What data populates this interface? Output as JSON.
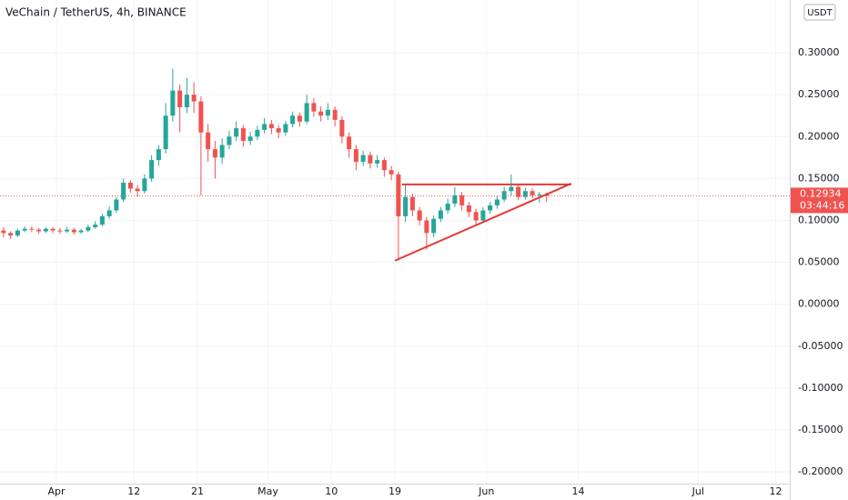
{
  "chart_data": {
    "type": "candlestick",
    "title": "VeChain / TetherUS, 4h, BINANCE",
    "currency": "USDT",
    "countdown": "03:44:16",
    "up_color": "#26a69a",
    "down_color": "#ef5350",
    "grid": true,
    "x": [
      "Mar 24",
      "Mar 25",
      "Mar 26",
      "Mar 27",
      "Mar 28",
      "Mar 29",
      "Mar 30",
      "Mar 31",
      "Apr 1",
      "Apr 2",
      "Apr 3",
      "Apr 4",
      "Apr 5",
      "Apr 6",
      "Apr 7",
      "Apr 8",
      "Apr 9",
      "Apr 10",
      "Apr 11",
      "Apr 12",
      "Apr 13",
      "Apr 14",
      "Apr 15",
      "Apr 16",
      "Apr 17",
      "Apr 18",
      "Apr 19",
      "Apr 20",
      "Apr 21",
      "Apr 22",
      "Apr 23",
      "Apr 24",
      "Apr 25",
      "Apr 26",
      "Apr 27",
      "Apr 28",
      "Apr 29",
      "Apr 30",
      "May 1",
      "May 2",
      "May 3",
      "May 4",
      "May 5",
      "May 6",
      "May 7",
      "May 8",
      "May 9",
      "May 10",
      "May 11",
      "May 12",
      "May 13",
      "May 14",
      "May 15",
      "May 16",
      "May 17",
      "May 18",
      "May 19",
      "May 20",
      "May 21",
      "May 22",
      "May 23",
      "May 24",
      "May 25",
      "May 26",
      "May 27",
      "May 28",
      "May 29",
      "May 30",
      "May 31",
      "Jun 1",
      "Jun 2",
      "Jun 3",
      "Jun 4",
      "Jun 5",
      "Jun 6",
      "Jun 7",
      "Jun 8",
      "Jun 9"
    ],
    "open": [
      0.088,
      0.085,
      0.082,
      0.088,
      0.09,
      0.089,
      0.087,
      0.09,
      0.088,
      0.087,
      0.089,
      0.086,
      0.088,
      0.092,
      0.095,
      0.105,
      0.112,
      0.125,
      0.145,
      0.138,
      0.135,
      0.15,
      0.172,
      0.185,
      0.225,
      0.255,
      0.235,
      0.25,
      0.242,
      0.205,
      0.185,
      0.175,
      0.19,
      0.2,
      0.21,
      0.195,
      0.2,
      0.208,
      0.215,
      0.21,
      0.205,
      0.215,
      0.225,
      0.218,
      0.24,
      0.23,
      0.225,
      0.232,
      0.22,
      0.2,
      0.185,
      0.17,
      0.178,
      0.168,
      0.172,
      0.16,
      0.155,
      0.105,
      0.128,
      0.112,
      0.1,
      0.085,
      0.102,
      0.112,
      0.12,
      0.13,
      0.118,
      0.11,
      0.1,
      0.112,
      0.118,
      0.125,
      0.135,
      0.14,
      0.128,
      0.135,
      0.13,
      0.131
    ],
    "high": [
      0.092,
      0.087,
      0.09,
      0.093,
      0.093,
      0.091,
      0.092,
      0.092,
      0.091,
      0.092,
      0.091,
      0.09,
      0.095,
      0.099,
      0.108,
      0.117,
      0.128,
      0.15,
      0.148,
      0.142,
      0.155,
      0.178,
      0.19,
      0.24,
      0.281,
      0.262,
      0.27,
      0.265,
      0.248,
      0.215,
      0.195,
      0.198,
      0.207,
      0.218,
      0.214,
      0.206,
      0.213,
      0.222,
      0.22,
      0.214,
      0.219,
      0.23,
      0.229,
      0.25,
      0.246,
      0.236,
      0.24,
      0.236,
      0.224,
      0.205,
      0.19,
      0.183,
      0.182,
      0.178,
      0.175,
      0.165,
      0.158,
      0.142,
      0.132,
      0.116,
      0.104,
      0.106,
      0.116,
      0.126,
      0.14,
      0.134,
      0.122,
      0.114,
      0.116,
      0.122,
      0.129,
      0.14,
      0.155,
      0.144,
      0.139,
      0.138,
      0.134,
      0.133
    ],
    "low": [
      0.08,
      0.078,
      0.08,
      0.086,
      0.086,
      0.084,
      0.085,
      0.085,
      0.084,
      0.085,
      0.083,
      0.084,
      0.086,
      0.09,
      0.093,
      0.102,
      0.109,
      0.122,
      0.133,
      0.128,
      0.132,
      0.146,
      0.165,
      0.18,
      0.218,
      0.205,
      0.228,
      0.228,
      0.13,
      0.17,
      0.15,
      0.168,
      0.185,
      0.195,
      0.188,
      0.19,
      0.196,
      0.204,
      0.203,
      0.198,
      0.201,
      0.211,
      0.212,
      0.215,
      0.224,
      0.218,
      0.22,
      0.212,
      0.192,
      0.175,
      0.16,
      0.165,
      0.162,
      0.163,
      0.152,
      0.148,
      0.052,
      0.098,
      0.105,
      0.094,
      0.065,
      0.08,
      0.098,
      0.108,
      0.116,
      0.112,
      0.104,
      0.094,
      0.097,
      0.108,
      0.114,
      0.122,
      0.13,
      0.124,
      0.125,
      0.126,
      0.121,
      0.122
    ],
    "close": [
      0.085,
      0.082,
      0.088,
      0.09,
      0.089,
      0.087,
      0.09,
      0.088,
      0.087,
      0.089,
      0.086,
      0.088,
      0.092,
      0.095,
      0.105,
      0.112,
      0.125,
      0.145,
      0.138,
      0.135,
      0.15,
      0.172,
      0.185,
      0.225,
      0.255,
      0.235,
      0.25,
      0.242,
      0.205,
      0.185,
      0.175,
      0.19,
      0.2,
      0.21,
      0.195,
      0.2,
      0.208,
      0.215,
      0.21,
      0.205,
      0.215,
      0.225,
      0.218,
      0.24,
      0.23,
      0.225,
      0.232,
      0.22,
      0.2,
      0.185,
      0.17,
      0.178,
      0.168,
      0.172,
      0.16,
      0.155,
      0.105,
      0.128,
      0.112,
      0.1,
      0.085,
      0.102,
      0.112,
      0.12,
      0.13,
      0.118,
      0.11,
      0.1,
      0.112,
      0.118,
      0.125,
      0.135,
      0.14,
      0.128,
      0.135,
      0.13,
      0.131,
      0.12934
    ],
    "xlim": [
      "Mar 24",
      "Jul 14"
    ],
    "xticks": [
      {
        "value": "Apr 1",
        "label": "Apr"
      },
      {
        "value": "Apr 12",
        "label": "12"
      },
      {
        "value": "Apr 21",
        "label": "21"
      },
      {
        "value": "May 1",
        "label": "May"
      },
      {
        "value": "May 10",
        "label": "10"
      },
      {
        "value": "May 19",
        "label": "19"
      },
      {
        "value": "Jun 1",
        "label": "Jun"
      },
      {
        "value": "Jun 14",
        "label": "14"
      },
      {
        "value": "Jul 1",
        "label": "Jul"
      },
      {
        "value": "Jul 12",
        "label": "12"
      }
    ],
    "ylim": [
      -0.214,
      0.363
    ],
    "yticks": [
      {
        "value": 0.3,
        "label": "0.30000"
      },
      {
        "value": 0.25,
        "label": "0.25000"
      },
      {
        "value": 0.2,
        "label": "0.20000"
      },
      {
        "value": 0.15,
        "label": "0.15000"
      },
      {
        "value": 0.1,
        "label": "0.10000"
      },
      {
        "value": 0.05,
        "label": "0.05000"
      },
      {
        "value": 0,
        "label": "0.00000"
      },
      {
        "value": -0.05,
        "label": "-0.05000"
      },
      {
        "value": -0.1,
        "label": "-0.10000"
      },
      {
        "value": -0.15,
        "label": "-0.15000"
      },
      {
        "value": -0.2,
        "label": "-0.20000"
      }
    ],
    "drawings_color": "#e53935",
    "drawings": [
      {
        "x": [
          "May 19",
          "Jun 13"
        ],
        "y": [
          0.052,
          0.144
        ]
      },
      {
        "x": [
          "May 20",
          "Jun 13"
        ],
        "y": [
          0.143,
          0.143
        ]
      }
    ]
  }
}
